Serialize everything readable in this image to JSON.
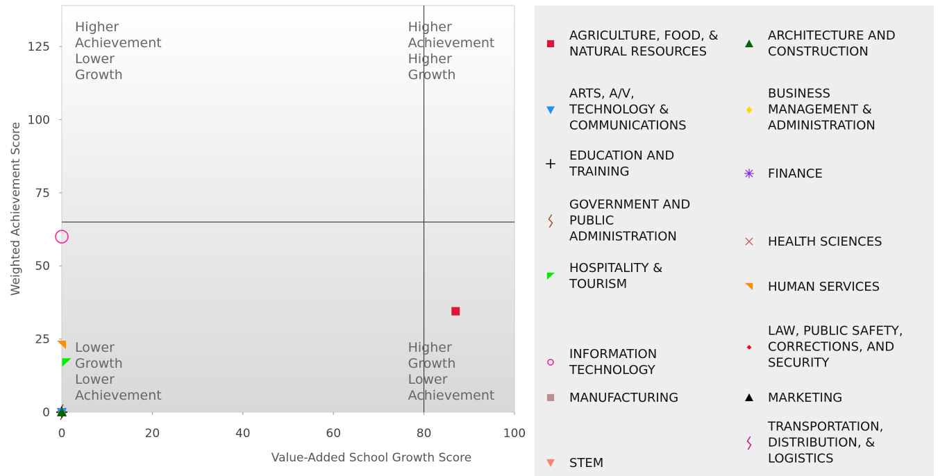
{
  "chart_data": {
    "type": "scatter",
    "xlabel": "Value-Added School Growth Score",
    "ylabel": "Weighted Achievement Score",
    "xlim": [
      0,
      100
    ],
    "ylim": [
      0,
      139
    ],
    "xticks": [
      0,
      20,
      40,
      60,
      80,
      100
    ],
    "yticks": [
      0,
      25,
      50,
      75,
      100,
      125
    ],
    "quadrant_lines": {
      "x": 80,
      "y": 65
    },
    "annotations": [
      {
        "lines": [
          "Higher",
          "Achievement",
          "Lower",
          "Growth"
        ]
      },
      {
        "lines": [
          "Higher",
          "Achievement",
          "Higher",
          "Growth"
        ]
      },
      {
        "lines": [
          "Lower",
          "Growth",
          "Lower",
          "Achievement"
        ]
      },
      {
        "lines": [
          "Higher",
          "Growth",
          "Lower",
          "Achievement"
        ]
      }
    ],
    "series": [
      {
        "name": "AGRICULTURE, FOOD, & NATURAL RESOURCES",
        "color": "#dc143c",
        "marker": "square",
        "x": [
          87
        ],
        "values": [
          34.5
        ]
      },
      {
        "name": "ARCHITECTURE AND CONSTRUCTION",
        "color": "#006400",
        "marker": "triangle-up",
        "x": [
          0
        ],
        "values": [
          0
        ]
      },
      {
        "name": "ARTS, A/V, TECHNOLOGY & COMMUNICATIONS",
        "color": "#1e90ff",
        "marker": "triangle-down",
        "x": [
          0
        ],
        "values": [
          0
        ]
      },
      {
        "name": "BUSINESS MANAGEMENT & ADMINISTRATION",
        "color": "#ffd700",
        "marker": "diamond",
        "x": [
          0
        ],
        "values": [
          0
        ]
      },
      {
        "name": "EDUCATION AND TRAINING",
        "color": "#000000",
        "marker": "plus",
        "x": [
          0
        ],
        "values": [
          0
        ]
      },
      {
        "name": "FINANCE",
        "color": "#8a2be2",
        "marker": "asterisk",
        "x": [
          0
        ],
        "values": [
          0
        ]
      },
      {
        "name": "GOVERNMENT AND PUBLIC ADMINISTRATION",
        "color": "#a0522d",
        "marker": "squiggle",
        "x": [
          0
        ],
        "values": [
          0
        ]
      },
      {
        "name": "HEALTH SCIENCES",
        "color": "#cd5c5c",
        "marker": "cross",
        "x": [
          0
        ],
        "values": [
          0
        ]
      },
      {
        "name": "HOSPITALITY & TOURISM",
        "color": "#00ee00",
        "marker": "flag-left",
        "x": [
          1
        ],
        "values": [
          17
        ]
      },
      {
        "name": "HUMAN SERVICES",
        "color": "#ff8c00",
        "marker": "flag-right",
        "x": [
          0
        ],
        "values": [
          23
        ]
      },
      {
        "name": "INFORMATION TECHNOLOGY",
        "color": "#ff1493",
        "marker": "circle-open",
        "x": [
          0
        ],
        "values": [
          60
        ]
      },
      {
        "name": "LAW, PUBLIC SAFETY, CORRECTIONS, AND SECURITY",
        "color": "#ff0000",
        "marker": "small-diamond",
        "x": [
          0
        ],
        "values": [
          0
        ]
      },
      {
        "name": "MANUFACTURING",
        "color": "#bc8f8f",
        "marker": "square",
        "x": [
          0
        ],
        "values": [
          0
        ]
      },
      {
        "name": "MARKETING",
        "color": "#000000",
        "marker": "triangle-up",
        "x": [
          0
        ],
        "values": [
          0
        ]
      },
      {
        "name": "STEM",
        "color": "#fa8072",
        "marker": "triangle-down",
        "x": [
          0
        ],
        "values": [
          0
        ]
      },
      {
        "name": "TRANSPORTATION, DISTRIBUTION, & LOGISTICS",
        "color": "#c71585",
        "marker": "squiggle",
        "x": [
          0
        ],
        "values": [
          0
        ]
      }
    ]
  }
}
